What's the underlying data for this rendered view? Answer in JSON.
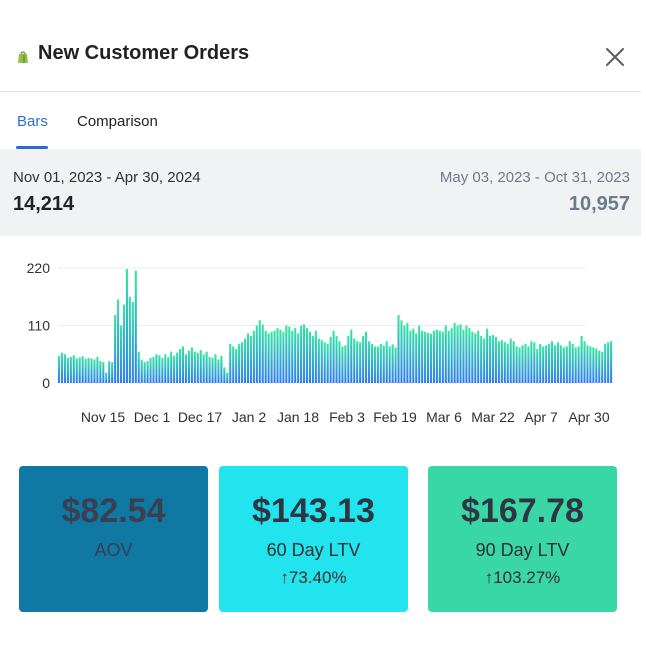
{
  "header": {
    "title": "New Customer Orders",
    "logo_icon": "shopify-bag-icon",
    "close_icon": "close-icon"
  },
  "tabs": [
    {
      "label": "Bars",
      "active": true
    },
    {
      "label": "Comparison",
      "active": false
    }
  ],
  "summary": {
    "current_range": "Nov 01, 2023 - Apr 30, 2024",
    "current_value": "14,214",
    "previous_range": "May 03, 2023 - Oct 31, 2023",
    "previous_value": "10,957"
  },
  "chart_data": {
    "type": "bar",
    "ylim": [
      0,
      220
    ],
    "ytick_labels": [
      "220",
      "110",
      "0"
    ],
    "yticks": [
      220,
      110,
      0
    ],
    "xtick_labels": [
      "Nov 15",
      "Dec 1",
      "Dec 17",
      "Jan 2",
      "Jan 18",
      "Feb 3",
      "Feb 19",
      "Mar 6",
      "Mar 22",
      "Apr 7",
      "Apr 30"
    ],
    "grid": true,
    "gradient": [
      "#2f7bf0",
      "#34e6a2"
    ],
    "values": [
      52,
      58,
      55,
      48,
      50,
      53,
      47,
      49,
      51,
      46,
      48,
      47,
      45,
      50,
      42,
      40,
      20,
      42,
      40,
      130,
      160,
      110,
      150,
      218,
      165,
      155,
      215,
      60,
      45,
      40,
      42,
      48,
      50,
      55,
      53,
      48,
      55,
      50,
      60,
      52,
      58,
      65,
      70,
      55,
      62,
      68,
      60,
      58,
      63,
      55,
      60,
      50,
      48,
      55,
      45,
      52,
      30,
      20,
      75,
      70,
      65,
      75,
      78,
      85,
      95,
      90,
      100,
      110,
      120,
      112,
      100,
      95,
      98,
      100,
      105,
      102,
      98,
      110,
      108,
      100,
      105,
      95,
      110,
      112,
      105,
      98,
      90,
      100,
      85,
      82,
      78,
      75,
      88,
      100,
      90,
      80,
      70,
      72,
      90,
      102,
      85,
      80,
      78,
      90,
      98,
      80,
      75,
      70,
      70,
      75,
      72,
      80,
      70,
      74,
      68,
      130,
      120,
      110,
      115,
      100,
      104,
      95,
      110,
      100,
      98,
      96,
      94,
      100,
      102,
      100,
      98,
      110,
      100,
      105,
      115,
      110,
      112,
      102,
      110,
      105,
      98,
      95,
      100,
      90,
      85,
      104,
      90,
      92,
      88,
      80,
      82,
      78,
      75,
      85,
      80,
      70,
      68,
      72,
      75,
      70,
      80,
      78,
      65,
      75,
      70,
      72,
      75,
      80,
      72,
      78,
      72,
      68,
      70,
      80,
      75,
      68,
      70,
      90,
      80,
      72,
      70,
      68,
      66,
      62,
      60,
      75,
      78,
      80
    ]
  },
  "cards": [
    {
      "value": "$82.54",
      "label": "AOV",
      "change": ""
    },
    {
      "value": "$143.13",
      "label": "60 Day LTV",
      "change": "↑73.40%"
    },
    {
      "value": "$167.78",
      "label": "90 Day LTV",
      "change": "↑103.27%"
    }
  ]
}
